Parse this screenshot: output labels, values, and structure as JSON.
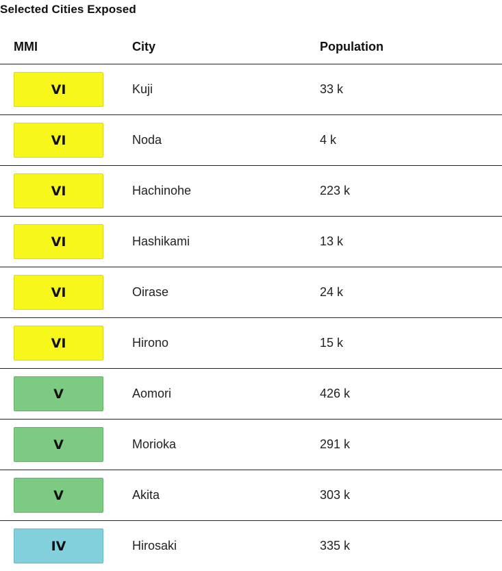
{
  "section": {
    "title": "Selected Cities Exposed"
  },
  "table": {
    "headers": {
      "mmi": "MMI",
      "city": "City",
      "population": "Population"
    },
    "rows": [
      {
        "mmi": "VI",
        "city": "Kuji",
        "population": "33 k"
      },
      {
        "mmi": "VI",
        "city": "Noda",
        "population": "4 k"
      },
      {
        "mmi": "VI",
        "city": "Hachinohe",
        "population": "223 k"
      },
      {
        "mmi": "VI",
        "city": "Hashikami",
        "population": "13 k"
      },
      {
        "mmi": "VI",
        "city": "Oirase",
        "population": "24 k"
      },
      {
        "mmi": "VI",
        "city": "Hirono",
        "population": "15 k"
      },
      {
        "mmi": "V",
        "city": "Aomori",
        "population": "426 k"
      },
      {
        "mmi": "V",
        "city": "Morioka",
        "population": "291 k"
      },
      {
        "mmi": "V",
        "city": "Akita",
        "population": "303 k"
      },
      {
        "mmi": "IV",
        "city": "Hirosaki",
        "population": "335 k"
      }
    ]
  },
  "colors": {
    "mmi_VI": "#f8f71c",
    "mmi_V": "#7dcb82",
    "mmi_IV": "#82d0dc"
  }
}
